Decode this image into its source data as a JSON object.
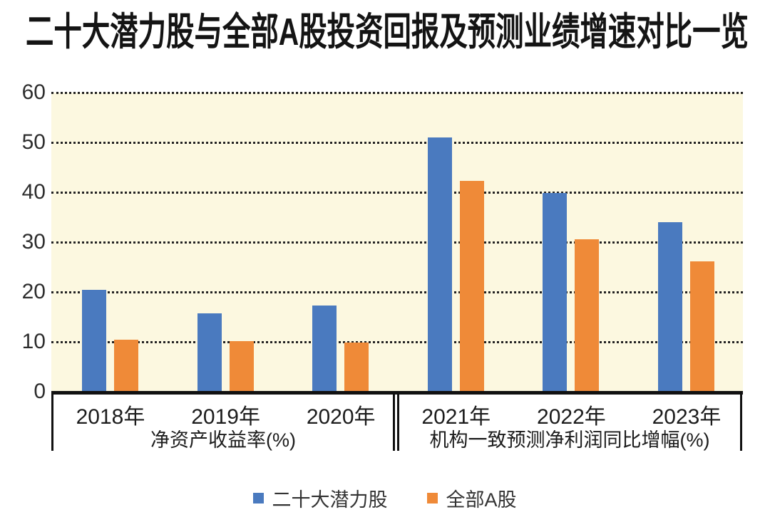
{
  "title": "二十大潜力股与全部A股投资回报及预测业绩增速对比一览",
  "colors": {
    "series_blue": "#4A7ABF",
    "series_orange": "#EF8A38",
    "plot_background": "#FCF8E0",
    "axis_line": "#111111",
    "grid_dots": "#222222"
  },
  "chart_data": {
    "type": "bar",
    "title": "二十大潜力股与全部A股投资回报及预测业绩增速对比一览",
    "categories": [
      "2018年",
      "2019年",
      "2020年",
      "2021年",
      "2022年",
      "2023年"
    ],
    "series": [
      {
        "name": "二十大潜力股",
        "color": "#4A7ABF",
        "values": [
          20.4,
          15.7,
          17.3,
          51.0,
          39.8,
          34.0
        ]
      },
      {
        "name": "全部A股",
        "color": "#EF8A38",
        "values": [
          10.4,
          10.1,
          9.8,
          42.3,
          30.5,
          26.2
        ]
      }
    ],
    "groups": [
      {
        "label": "净资产收益率(%)",
        "categories": [
          "2018年",
          "2019年",
          "2020年"
        ]
      },
      {
        "label": "机构一致预测净利润同比增幅(%)",
        "categories": [
          "2021年",
          "2022年",
          "2023年"
        ]
      }
    ],
    "xlabel": "",
    "ylabel": "",
    "ylim": [
      0,
      60
    ],
    "yticks": [
      0,
      10,
      20,
      30,
      40,
      50,
      60
    ],
    "grid": "horizontal-dotted",
    "legend_position": "bottom-center"
  },
  "legend": {
    "items": [
      {
        "label": "二十大潜力股",
        "color": "#4A7ABF"
      },
      {
        "label": "全部A股",
        "color": "#EF8A38"
      }
    ]
  }
}
